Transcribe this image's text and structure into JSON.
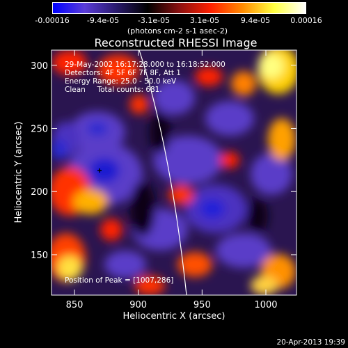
{
  "colorbar": {
    "ticks": [
      "-0.00016",
      "-9.4e-05",
      "-3.1e-05",
      "3.1e-05",
      "9.4e-05",
      "0.00016"
    ],
    "unit_label": "(photons cm-2 s-1 asec-2)",
    "gradient": [
      "#0000ff",
      "#5a3cd8",
      "#2a1a6e",
      "#000000",
      "#8a1010",
      "#ff2000",
      "#ff8a00",
      "#ffff40",
      "#ffffff"
    ]
  },
  "plot": {
    "title": "Reconstructed RHESSI Image",
    "xlabel": "Heliocentric X (arcsec)",
    "ylabel": "Heliocentric Y (arcsec)",
    "xticks": [
      850,
      900,
      950,
      1000
    ],
    "yticks": [
      150,
      200,
      250,
      300
    ],
    "annotations": {
      "time": "29-May-2002 16:17:28.000 to 16:18:52.000",
      "detectors": "Detectors: 4F 5F 6F 7F 8F, Att 1",
      "energy": "Energy Range: 25.0 - 50.0 keV",
      "clean": "Clean     Total counts: 681.",
      "peak": "Position of Peak = [1007,286]"
    }
  },
  "footer": {
    "timestamp": "20-Apr-2013 19:39"
  }
}
